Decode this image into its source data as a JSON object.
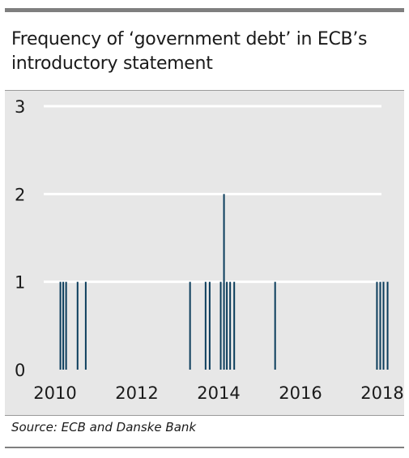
{
  "chart_data": {
    "type": "bar",
    "title": "Frequency of ‘government debt’ in ECB’s introductory statement",
    "xlabel": "",
    "ylabel": "",
    "xlim": [
      2010.0,
      2018.6
    ],
    "ylim": [
      0,
      3
    ],
    "yticks": [
      0,
      1,
      2,
      3
    ],
    "xticks": [
      2010,
      2012,
      2014,
      2016,
      2018
    ],
    "grid": true,
    "bar_color": "#0b3d5c",
    "x": [
      2010.13,
      2010.2,
      2010.27,
      2010.55,
      2010.75,
      2013.3,
      2013.68,
      2013.78,
      2014.05,
      2014.13,
      2014.2,
      2014.28,
      2014.38,
      2015.38,
      2017.87,
      2017.95,
      2018.03,
      2018.13
    ],
    "values": [
      1,
      1,
      1,
      1,
      1,
      1,
      1,
      1,
      1,
      2,
      1,
      1,
      1,
      1,
      1,
      1,
      1,
      1
    ]
  },
  "source": "Source: ECB and Danske Bank",
  "colors": {
    "plot_background": "#e7e7e7",
    "gridline": "#ffffff",
    "rule": "#7f7f7f"
  }
}
